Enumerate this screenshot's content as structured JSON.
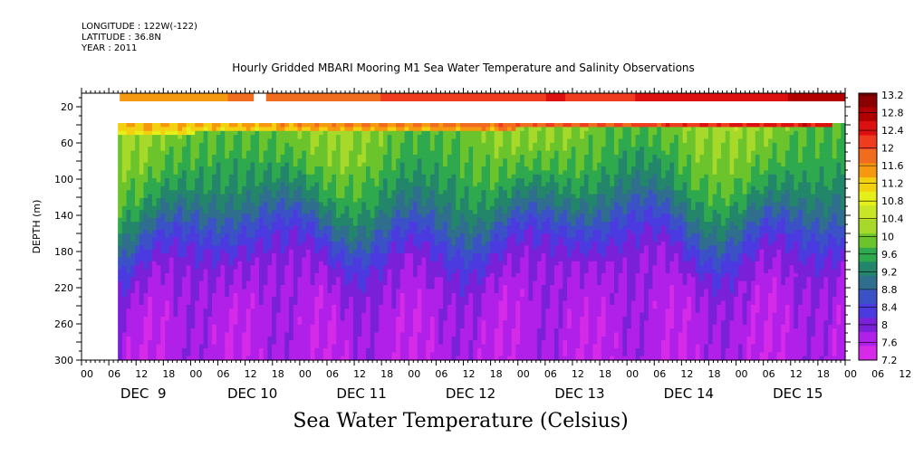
{
  "header": {
    "longitude": "LONGITUDE : 122W(-122)",
    "latitude": "LATITUDE : 36.8N",
    "year": "YEAR : 2011"
  },
  "chart_data": {
    "type": "heatmap",
    "title": "Hourly Gridded MBARI Mooring M1 Sea Water Temperature and Salinity Observations",
    "caption": "Sea Water Temperature (Celsius)",
    "ylabel": "DEPTH (m)",
    "ylim": [
      300,
      5
    ],
    "y_ticks": [
      20,
      60,
      100,
      140,
      180,
      220,
      260,
      300
    ],
    "x_hour_ticks": [
      "00",
      "06",
      "12",
      "18",
      "00",
      "06",
      "12",
      "18",
      "00",
      "06",
      "12",
      "18",
      "00",
      "06",
      "12",
      "18",
      "00",
      "06",
      "12",
      "18",
      "00",
      "06",
      "12",
      "18",
      "00",
      "06",
      "12",
      "18",
      "00",
      "06",
      "12",
      "18"
    ],
    "x_day_labels": [
      "DEC  9",
      "DEC 10",
      "DEC 11",
      "DEC 12",
      "DEC 13",
      "DEC 14",
      "DEC 15"
    ],
    "x_range_hours": [
      0,
      168
    ],
    "colorbar_levels": [
      "13.2",
      "12.8",
      "12.4",
      "12",
      "11.6",
      "11.2",
      "10.8",
      "10.4",
      "10",
      "9.6",
      "9.2",
      "8.8",
      "8.4",
      "8",
      "7.6",
      "7.2"
    ],
    "colorbar_colors": [
      "#8b0000",
      "#b20000",
      "#dd1010",
      "#f03c1e",
      "#f06c1e",
      "#f59a10",
      "#f3d010",
      "#e6ef1a",
      "#c8e626",
      "#a6d92a",
      "#6cc42c",
      "#2fa94e",
      "#23866a",
      "#306e8e",
      "#3b52c6",
      "#4b3ae0",
      "#7a20d8",
      "#b020e8",
      "#d52ae8"
    ],
    "surface_band_missing_hours": [
      [
        0,
        8
      ],
      [
        38,
        40
      ]
    ],
    "near_surface_missing_depth_range": [
      25,
      38
    ],
    "surface_temperature_trend": {
      "start": 11.6,
      "end": 13.1
    },
    "deep_temperature": 7.4,
    "mixed_layer_temperature": 10.1
  }
}
